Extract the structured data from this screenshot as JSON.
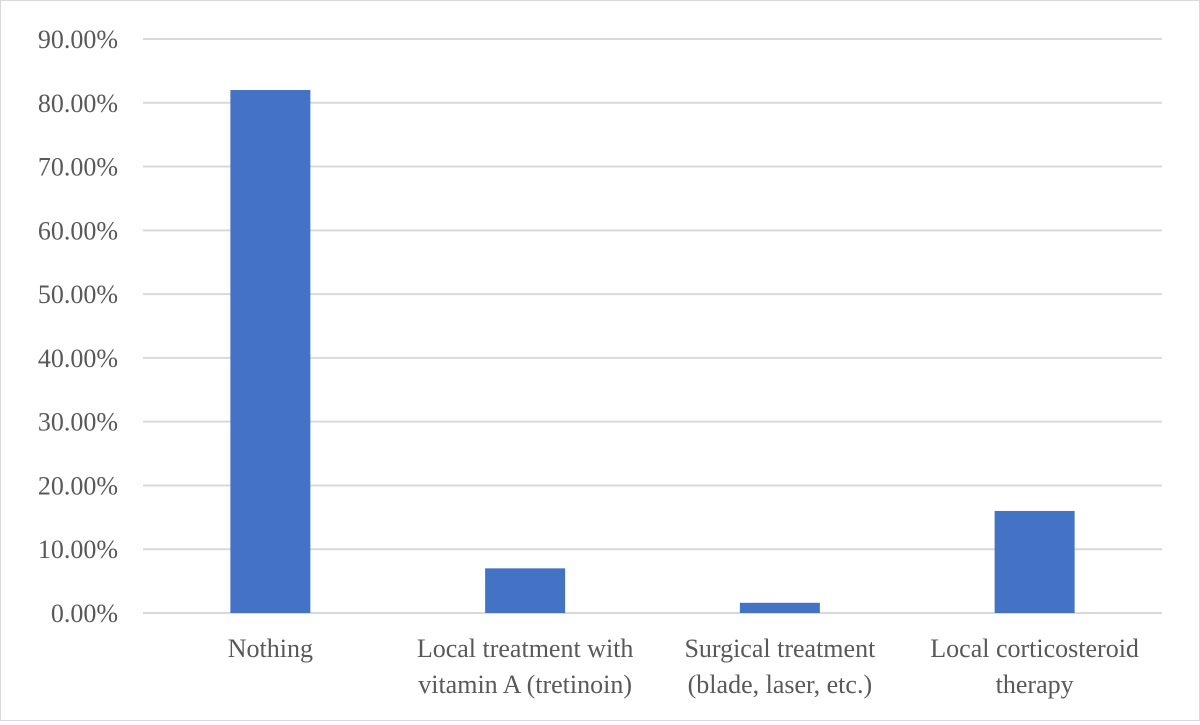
{
  "chart_data": {
    "type": "bar",
    "title": "",
    "xlabel": "",
    "ylabel": "",
    "categories": [
      [
        "Nothing"
      ],
      [
        "Local treatment with",
        "vitamin A (tretinoin)"
      ],
      [
        "Surgical treatment",
        "(blade, laser, etc.)"
      ],
      [
        "Local corticosteroid",
        "therapy"
      ]
    ],
    "values": [
      82.0,
      7.0,
      1.6,
      16.0
    ],
    "ylim": [
      0,
      90
    ],
    "yticks": [
      0,
      10,
      20,
      30,
      40,
      50,
      60,
      70,
      80,
      90
    ],
    "ytick_labels": [
      "0.00%",
      "10.00%",
      "20.00%",
      "30.00%",
      "40.00%",
      "50.00%",
      "60.00%",
      "70.00%",
      "80.00%",
      "90.00%"
    ],
    "grid": true,
    "legend": "none",
    "bar_color": "#4472c4",
    "grid_color": "#d9d9d9"
  }
}
